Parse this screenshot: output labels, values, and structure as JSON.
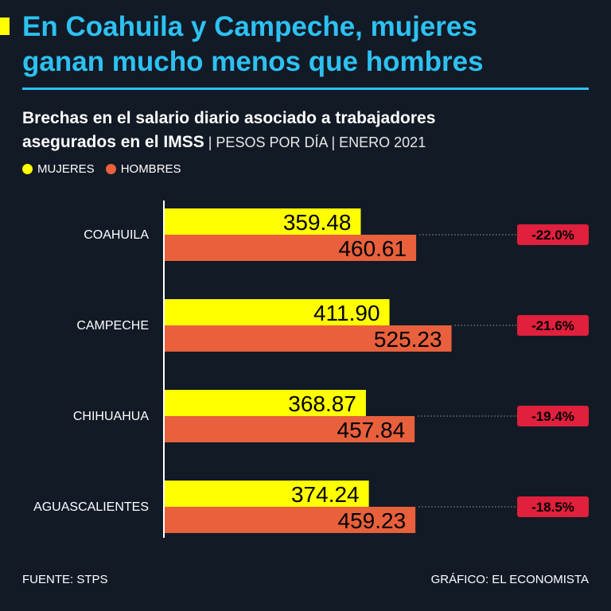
{
  "headline": {
    "line1": "En Coahuila y Campeche, mujeres",
    "line2": "ganan mucho menos que hombres"
  },
  "subtitle": {
    "bold_line1": "Brechas en el salario diario asociado a trabajadores",
    "bold_line2": "asegurados en el IMSS",
    "light": " | PESOS POR DÍA | ENERO 2021"
  },
  "legend": {
    "women": "MUJERES",
    "men": "HOMBRES"
  },
  "colors": {
    "women": "#ffff00",
    "men": "#e8603c",
    "gap_badge": "#e0203c",
    "title": "#2dc1f2",
    "background": "#121a26"
  },
  "chart_data": {
    "type": "bar",
    "orientation": "horizontal",
    "categories": [
      "COAHUILA",
      "CAMPECHE",
      "CHIHUAHUA",
      "AGUASCALIENTES"
    ],
    "series": [
      {
        "name": "MUJERES",
        "values": [
          359.48,
          411.9,
          368.87,
          374.24
        ],
        "labels": [
          "359.48",
          "411.90",
          "368.87",
          "374.24"
        ]
      },
      {
        "name": "HOMBRES",
        "values": [
          460.61,
          525.23,
          457.84,
          459.23
        ],
        "labels": [
          "460.61",
          "525.23",
          "457.84",
          "459.23"
        ]
      }
    ],
    "gaps": [
      "-22.0%",
      "-21.6%",
      "-19.4%",
      "-18.5%"
    ],
    "xlim": [
      0,
      613
    ]
  },
  "footer": {
    "source": "FUENTE: STPS",
    "credit": "GRÁFICO: EL ECONOMISTA"
  }
}
